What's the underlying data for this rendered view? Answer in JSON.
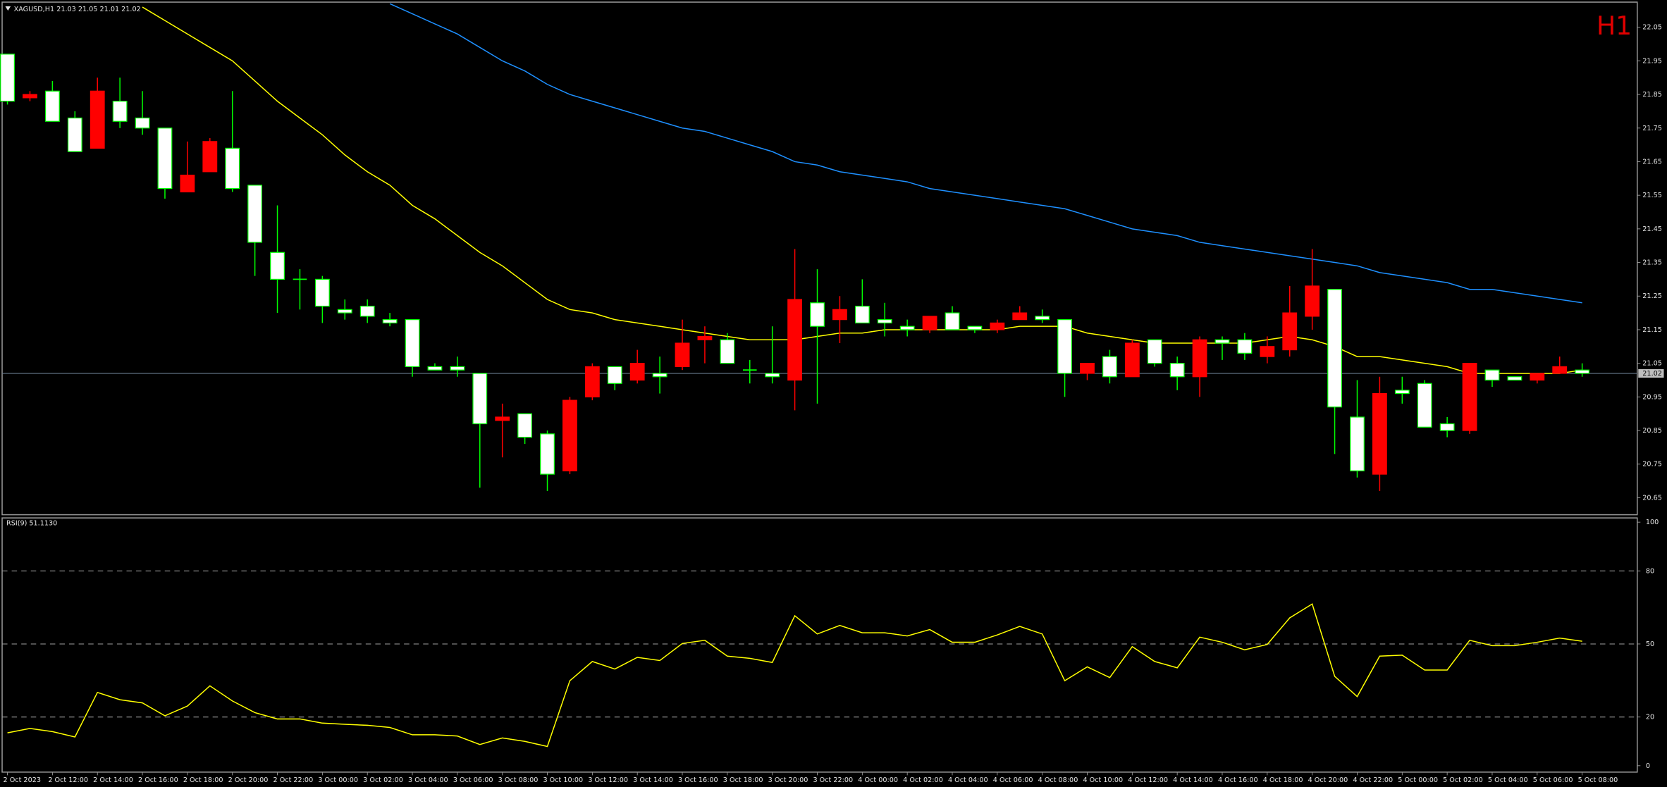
{
  "chart_data": [
    {
      "type": "candlestick",
      "title": "XAGUSD,H1  21.03 21.05 21.01 21.02",
      "timeframe": "H1",
      "categories": [
        "2 Oct 2023",
        null,
        "2 Oct 12:00",
        null,
        "2 Oct 14:00",
        null,
        "2 Oct 16:00",
        null,
        "2 Oct 18:00",
        null,
        "2 Oct 20:00",
        null,
        "2 Oct 22:00",
        null,
        "3 Oct 00:00",
        null,
        "3 Oct 02:00",
        null,
        "3 Oct 04:00",
        null,
        "3 Oct 06:00",
        null,
        "3 Oct 08:00",
        null,
        "3 Oct 10:00",
        null,
        "3 Oct 12:00",
        null,
        "3 Oct 14:00",
        null,
        "3 Oct 16:00",
        null,
        "3 Oct 18:00",
        null,
        "3 Oct 20:00",
        null,
        "3 Oct 22:00",
        null,
        "4 Oct 00:00",
        null,
        "4 Oct 02:00",
        null,
        "4 Oct 04:00",
        null,
        "4 Oct 06:00",
        null,
        "4 Oct 08:00",
        null,
        "4 Oct 10:00",
        null,
        "4 Oct 12:00",
        null,
        "4 Oct 14:00",
        null,
        "4 Oct 16:00",
        null,
        "4 Oct 18:00",
        null,
        "4 Oct 20:00",
        null,
        "4 Oct 22:00",
        null,
        "5 Oct 00:00",
        null,
        "5 Oct 02:00",
        null,
        "5 Oct 04:00",
        null,
        "5 Oct 06:00",
        null,
        "5 Oct 08:00"
      ],
      "open": [
        21.97,
        21.84,
        21.86,
        21.78,
        21.69,
        21.83,
        21.78,
        21.75,
        21.56,
        21.62,
        21.69,
        21.58,
        21.38,
        21.3,
        21.3,
        21.21,
        21.22,
        21.18,
        21.18,
        21.04,
        21.04,
        21.02,
        20.88,
        20.9,
        20.84,
        20.73,
        20.95,
        21.04,
        21.0,
        21.02,
        21.04,
        21.12,
        21.12,
        21.03,
        21.02,
        21.0,
        21.23,
        21.18,
        21.22,
        21.18,
        21.16,
        21.15,
        21.2,
        21.16,
        21.15,
        21.18,
        21.19,
        21.18,
        21.02,
        21.07,
        21.01,
        21.12,
        21.05,
        21.01,
        21.12,
        21.12,
        21.07,
        21.09,
        21.19,
        21.27,
        20.89,
        20.72,
        20.97,
        20.99,
        20.87,
        20.85,
        21.03,
        21.01,
        21.0,
        21.02,
        21.03
      ],
      "high": [
        21.97,
        21.86,
        21.89,
        21.8,
        21.9,
        21.9,
        21.86,
        21.75,
        21.71,
        21.72,
        21.86,
        21.58,
        21.52,
        21.33,
        21.31,
        21.24,
        21.24,
        21.2,
        21.18,
        21.05,
        21.07,
        21.02,
        20.93,
        20.9,
        20.85,
        20.95,
        21.05,
        21.04,
        21.09,
        21.07,
        21.18,
        21.16,
        21.14,
        21.06,
        21.16,
        21.39,
        21.33,
        21.25,
        21.3,
        21.23,
        21.18,
        21.19,
        21.22,
        21.16,
        21.18,
        21.22,
        21.21,
        21.18,
        21.05,
        21.09,
        21.12,
        21.12,
        21.07,
        21.13,
        21.13,
        21.14,
        21.13,
        21.28,
        21.39,
        21.27,
        21.0,
        21.01,
        21.01,
        21.0,
        20.89,
        21.05,
        21.03,
        21.01,
        21.02,
        21.07,
        21.05
      ],
      "low": [
        21.82,
        21.83,
        21.77,
        21.68,
        21.69,
        21.75,
        21.73,
        21.54,
        21.56,
        21.62,
        21.56,
        21.31,
        21.2,
        21.21,
        21.17,
        21.18,
        21.17,
        21.16,
        21.01,
        21.03,
        21.01,
        20.68,
        20.77,
        20.81,
        20.67,
        20.72,
        20.94,
        20.97,
        20.99,
        20.96,
        21.03,
        21.05,
        21.05,
        20.99,
        20.99,
        20.91,
        20.93,
        21.11,
        21.17,
        21.13,
        21.13,
        21.14,
        21.15,
        21.14,
        21.14,
        21.18,
        21.17,
        20.95,
        21.0,
        20.99,
        21.01,
        21.04,
        20.97,
        20.95,
        21.06,
        21.06,
        21.05,
        21.07,
        21.15,
        20.78,
        20.71,
        20.67,
        20.93,
        20.86,
        20.83,
        20.84,
        20.98,
        21.0,
        20.99,
        21.02,
        21.01
      ],
      "close": [
        21.83,
        21.85,
        21.77,
        21.68,
        21.86,
        21.77,
        21.75,
        21.57,
        21.61,
        21.71,
        21.57,
        21.41,
        21.3,
        21.3,
        21.22,
        21.2,
        21.19,
        21.17,
        21.04,
        21.03,
        21.03,
        20.87,
        20.89,
        20.83,
        20.72,
        20.94,
        21.04,
        20.99,
        21.05,
        21.01,
        21.11,
        21.13,
        21.05,
        21.03,
        21.01,
        21.24,
        21.16,
        21.21,
        21.17,
        21.17,
        21.15,
        21.19,
        21.15,
        21.15,
        21.17,
        21.2,
        21.18,
        21.02,
        21.05,
        21.01,
        21.11,
        21.05,
        21.01,
        21.12,
        21.11,
        21.08,
        21.1,
        21.2,
        21.28,
        20.92,
        20.73,
        20.96,
        20.96,
        20.86,
        20.85,
        21.05,
        21.0,
        21.0,
        21.02,
        21.04,
        21.02
      ],
      "series": [
        {
          "color": "#ffff00",
          "values": [
            null,
            null,
            null,
            null,
            null,
            null,
            22.11,
            22.07,
            22.03,
            21.99,
            21.95,
            21.89,
            21.83,
            21.78,
            21.73,
            21.67,
            21.62,
            21.58,
            21.52,
            21.48,
            21.43,
            21.38,
            21.34,
            21.29,
            21.24,
            21.21,
            21.2,
            21.18,
            21.17,
            21.16,
            21.15,
            21.14,
            21.13,
            21.12,
            21.12,
            21.12,
            21.13,
            21.14,
            21.14,
            21.15,
            21.15,
            21.15,
            21.15,
            21.15,
            21.15,
            21.16,
            21.16,
            21.16,
            21.14,
            21.13,
            21.12,
            21.11,
            21.11,
            21.11,
            21.11,
            21.11,
            21.12,
            21.13,
            21.12,
            21.1,
            21.07,
            21.07,
            21.06,
            21.05,
            21.04,
            21.02,
            21.02,
            21.02,
            21.02,
            21.02,
            21.03
          ]
        },
        {
          "color": "#1e90ff",
          "values": [
            null,
            null,
            null,
            null,
            null,
            null,
            null,
            null,
            null,
            null,
            null,
            null,
            null,
            null,
            null,
            null,
            null,
            22.12,
            22.09,
            22.06,
            22.03,
            21.99,
            21.95,
            21.92,
            21.88,
            21.85,
            21.83,
            21.81,
            21.79,
            21.77,
            21.75,
            21.74,
            21.72,
            21.7,
            21.68,
            21.65,
            21.64,
            21.62,
            21.61,
            21.6,
            21.59,
            21.57,
            21.56,
            21.55,
            21.54,
            21.53,
            21.52,
            21.51,
            21.49,
            21.47,
            21.45,
            21.44,
            21.43,
            21.41,
            21.4,
            21.39,
            21.38,
            21.37,
            21.36,
            21.35,
            21.34,
            21.32,
            21.31,
            21.3,
            21.29,
            21.27,
            21.27,
            21.26,
            21.25,
            21.24,
            21.23
          ]
        }
      ],
      "up_color": "#ff0000",
      "down_color": "#ffffff",
      "down_wick_color": "#00ff00",
      "last_price": 21.02,
      "ylim": [
        20.6,
        22.12
      ],
      "yticks": [
        20.65,
        20.75,
        20.85,
        20.95,
        21.05,
        21.15,
        21.25,
        21.35,
        21.45,
        21.55,
        21.65,
        21.75,
        21.85,
        21.95,
        22.05
      ]
    },
    {
      "type": "line",
      "title": "RSI(9) 51.1130",
      "color": "#ffff00",
      "values": [
        13.5,
        15.3,
        14.0,
        11.8,
        30.1,
        27.1,
        25.8,
        20.5,
        24.5,
        32.8,
        26.6,
        21.8,
        19.2,
        19.2,
        17.5,
        17.0,
        16.6,
        15.7,
        12.7,
        12.7,
        12.2,
        8.7,
        11.4,
        10.0,
        7.9,
        34.9,
        42.8,
        39.7,
        44.5,
        43.2,
        50.2,
        51.5,
        45.0,
        44.1,
        42.4,
        61.6,
        54.1,
        57.6,
        54.6,
        54.6,
        53.3,
        55.9,
        50.7,
        50.7,
        53.7,
        57.2,
        54.1,
        34.9,
        40.6,
        36.2,
        48.9,
        42.8,
        40.2,
        52.8,
        50.7,
        47.6,
        49.8,
        60.7,
        66.4,
        36.7,
        28.4,
        45.0,
        45.4,
        39.3,
        39.3,
        51.5,
        49.3,
        49.3,
        50.7,
        52.4,
        51.113
      ],
      "levels": [
        20,
        50,
        80
      ],
      "ylim": [
        0,
        100
      ],
      "yticks": [
        0,
        20,
        50,
        80,
        100
      ]
    }
  ]
}
